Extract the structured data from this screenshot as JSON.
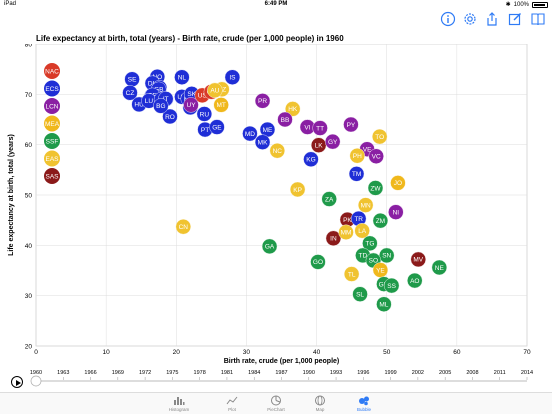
{
  "status_bar": {
    "device": "iPad",
    "time": "6:49 PM",
    "battery": "100%"
  },
  "toolbar": {
    "icons": [
      "info-icon",
      "gear-icon",
      "share-icon",
      "edit-icon",
      "book-icon"
    ],
    "color": "#2f7bf5"
  },
  "chart_data": {
    "type": "scatter",
    "title": "Life expectancy at birth, total (years) - Birth rate, crude (per 1,000 people) in 1960",
    "xlabel": "Birth rate, crude (per 1,000 people)",
    "ylabel": "Life expectancy at birth, total (years)",
    "xlim": [
      0,
      70
    ],
    "ylim": [
      20,
      80
    ],
    "xticks": [
      0,
      10,
      20,
      30,
      40,
      50,
      60,
      70
    ],
    "yticks": [
      20,
      30,
      40,
      50,
      60,
      70,
      80
    ],
    "grid": true,
    "legend_position": "left",
    "legend": [
      {
        "code": "NAC",
        "color": "#d93a28"
      },
      {
        "code": "ECS",
        "color": "#1f2ed6"
      },
      {
        "code": "LCN",
        "color": "#8a1fa3"
      },
      {
        "code": "MEA",
        "color": "#f0b81c"
      },
      {
        "code": "SSF",
        "color": "#1f9a4a"
      },
      {
        "code": "EAS",
        "color": "#f0c330"
      },
      {
        "code": "SAS",
        "color": "#8b1a1a"
      }
    ],
    "points": [
      {
        "label": "SE",
        "x": 13.7,
        "y": 73.0,
        "region": "ECS"
      },
      {
        "label": "NO",
        "x": 17.3,
        "y": 73.5,
        "region": "ECS"
      },
      {
        "label": "NL",
        "x": 20.8,
        "y": 73.4,
        "region": "ECS"
      },
      {
        "label": "IS",
        "x": 28.0,
        "y": 73.4,
        "region": "ECS"
      },
      {
        "label": "CZ",
        "x": 13.4,
        "y": 70.3,
        "region": "ECS"
      },
      {
        "label": "DK",
        "x": 16.6,
        "y": 72.2,
        "region": "ECS"
      },
      {
        "label": "CH",
        "x": 17.6,
        "y": 71.3,
        "region": "ECS"
      },
      {
        "label": "FI",
        "x": 18.5,
        "y": 69.0,
        "region": "ECS"
      },
      {
        "label": "GB",
        "x": 17.5,
        "y": 71.0,
        "region": "ECS"
      },
      {
        "label": "UA",
        "x": 20.8,
        "y": 69.5,
        "region": "ECS"
      },
      {
        "label": "LV",
        "x": 16.5,
        "y": 69.7,
        "region": "ECS"
      },
      {
        "label": "HU",
        "x": 14.7,
        "y": 68.0,
        "region": "ECS"
      },
      {
        "label": "BE",
        "x": 16.6,
        "y": 69.8,
        "region": "ECS"
      },
      {
        "label": "LU",
        "x": 16.1,
        "y": 68.7,
        "region": "ECS"
      },
      {
        "label": "SI",
        "x": 17.9,
        "y": 69.0,
        "region": "ECS"
      },
      {
        "label": "ES",
        "x": 21.7,
        "y": 69.1,
        "region": "ECS"
      },
      {
        "label": "SK",
        "x": 22.2,
        "y": 70.1,
        "region": "ECS"
      },
      {
        "label": "NZ",
        "x": 26.5,
        "y": 71.0,
        "region": "EAS"
      },
      {
        "label": "US",
        "x": 23.7,
        "y": 69.8,
        "region": "NAC"
      },
      {
        "label": "CA",
        "x": 25.0,
        "y": 70.5,
        "region": "NAC"
      },
      {
        "label": "PL",
        "x": 22.0,
        "y": 67.4,
        "region": "ECS"
      },
      {
        "label": "AU",
        "x": 25.5,
        "y": 70.8,
        "region": "EAS"
      },
      {
        "label": "IT",
        "x": 18.5,
        "y": 69.1,
        "region": "ECS"
      },
      {
        "label": "UY",
        "x": 22.1,
        "y": 67.9,
        "region": "LCN"
      },
      {
        "label": "MT",
        "x": 26.4,
        "y": 67.9,
        "region": "MEA"
      },
      {
        "label": "RU",
        "x": 24.0,
        "y": 66.1,
        "region": "ECS"
      },
      {
        "label": "RO",
        "x": 19.1,
        "y": 65.6,
        "region": "ECS"
      },
      {
        "label": "BG",
        "x": 17.8,
        "y": 67.7,
        "region": "ECS"
      },
      {
        "label": "PT",
        "x": 24.1,
        "y": 63.0,
        "region": "ECS"
      },
      {
        "label": "GE",
        "x": 25.8,
        "y": 63.5,
        "region": "ECS"
      },
      {
        "label": "PR",
        "x": 32.3,
        "y": 68.7,
        "region": "LCN"
      },
      {
        "label": "ME",
        "x": 33.0,
        "y": 63.0,
        "region": "ECS"
      },
      {
        "label": "MD",
        "x": 30.5,
        "y": 62.2,
        "region": "ECS"
      },
      {
        "label": "MK",
        "x": 32.3,
        "y": 60.5,
        "region": "ECS"
      },
      {
        "label": "NC",
        "x": 34.4,
        "y": 58.8,
        "region": "EAS"
      },
      {
        "label": "HK",
        "x": 36.6,
        "y": 67.1,
        "region": "EAS"
      },
      {
        "label": "BB",
        "x": 35.5,
        "y": 65.0,
        "region": "LCN"
      },
      {
        "label": "VI",
        "x": 38.7,
        "y": 63.5,
        "region": "LCN"
      },
      {
        "label": "TT",
        "x": 40.5,
        "y": 63.3,
        "region": "LCN"
      },
      {
        "label": "PY",
        "x": 44.9,
        "y": 64.0,
        "region": "LCN"
      },
      {
        "label": "LK",
        "x": 40.3,
        "y": 59.9,
        "region": "SAS"
      },
      {
        "label": "GY",
        "x": 42.3,
        "y": 60.6,
        "region": "LCN"
      },
      {
        "label": "KG",
        "x": 39.2,
        "y": 57.1,
        "region": "ECS"
      },
      {
        "label": "TO",
        "x": 49.0,
        "y": 61.6,
        "region": "EAS"
      },
      {
        "label": "KP",
        "x": 37.3,
        "y": 51.1,
        "region": "EAS"
      },
      {
        "label": "VE",
        "x": 47.2,
        "y": 59.1,
        "region": "LCN"
      },
      {
        "label": "VC",
        "x": 48.5,
        "y": 57.7,
        "region": "LCN"
      },
      {
        "label": "PH",
        "x": 45.8,
        "y": 57.8,
        "region": "EAS"
      },
      {
        "label": "TM",
        "x": 45.7,
        "y": 54.2,
        "region": "ECS"
      },
      {
        "label": "JO",
        "x": 51.6,
        "y": 52.4,
        "region": "MEA"
      },
      {
        "label": "ZW",
        "x": 48.4,
        "y": 51.4,
        "region": "SSF"
      },
      {
        "label": "ZA",
        "x": 41.8,
        "y": 49.2,
        "region": "SSF"
      },
      {
        "label": "MN",
        "x": 47.0,
        "y": 48.0,
        "region": "EAS"
      },
      {
        "label": "NI",
        "x": 51.3,
        "y": 46.6,
        "region": "LCN"
      },
      {
        "label": "PK",
        "x": 44.4,
        "y": 45.1,
        "region": "SAS"
      },
      {
        "label": "TR",
        "x": 46.0,
        "y": 45.3,
        "region": "ECS"
      },
      {
        "label": "ZM",
        "x": 49.1,
        "y": 44.9,
        "region": "SSF"
      },
      {
        "label": "IN",
        "x": 42.4,
        "y": 41.4,
        "region": "SAS"
      },
      {
        "label": "MM",
        "x": 44.2,
        "y": 42.6,
        "region": "EAS"
      },
      {
        "label": "LA",
        "x": 46.5,
        "y": 42.9,
        "region": "EAS"
      },
      {
        "label": "TG",
        "x": 47.6,
        "y": 40.4,
        "region": "SSF"
      },
      {
        "label": "SN",
        "x": 50.0,
        "y": 38.0,
        "region": "SSF"
      },
      {
        "label": "TD",
        "x": 46.6,
        "y": 38.0,
        "region": "SSF"
      },
      {
        "label": "SO",
        "x": 48.1,
        "y": 37.0,
        "region": "SSF"
      },
      {
        "label": "MV",
        "x": 54.5,
        "y": 37.2,
        "region": "SAS"
      },
      {
        "label": "NE",
        "x": 57.5,
        "y": 35.6,
        "region": "SSF"
      },
      {
        "label": "GO",
        "x": 40.2,
        "y": 36.7,
        "region": "SSF"
      },
      {
        "label": "YE",
        "x": 49.1,
        "y": 35.1,
        "region": "MEA"
      },
      {
        "label": "TL",
        "x": 45.0,
        "y": 34.3,
        "region": "EAS"
      },
      {
        "label": "GM",
        "x": 49.6,
        "y": 32.3,
        "region": "SSF"
      },
      {
        "label": "SS",
        "x": 50.7,
        "y": 32.0,
        "region": "SSF"
      },
      {
        "label": "AO",
        "x": 54.0,
        "y": 33.0,
        "region": "SSF"
      },
      {
        "label": "SL",
        "x": 46.2,
        "y": 30.3,
        "region": "SSF"
      },
      {
        "label": "ML",
        "x": 49.6,
        "y": 28.3,
        "region": "SSF"
      },
      {
        "label": "GA",
        "x": 33.3,
        "y": 39.8,
        "region": "SSF"
      },
      {
        "label": "CN",
        "x": 21.0,
        "y": 43.7,
        "region": "EAS"
      }
    ]
  },
  "timeline": {
    "ticks": [
      "1960",
      "1963",
      "1966",
      "1969",
      "1972",
      "1975",
      "1978",
      "1981",
      "1984",
      "1987",
      "1990",
      "1993",
      "1996",
      "1999",
      "2002",
      "2005",
      "2008",
      "2011",
      "2014"
    ],
    "current_year": "1960"
  },
  "tabbar": {
    "tabs": [
      {
        "label": "Histogram",
        "name": "tab-histogram"
      },
      {
        "label": "Plot",
        "name": "tab-plot"
      },
      {
        "label": "PieChart",
        "name": "tab-piechart"
      },
      {
        "label": "Map",
        "name": "tab-map"
      },
      {
        "label": "Bubble",
        "name": "tab-bubble"
      }
    ],
    "active": "Bubble"
  }
}
